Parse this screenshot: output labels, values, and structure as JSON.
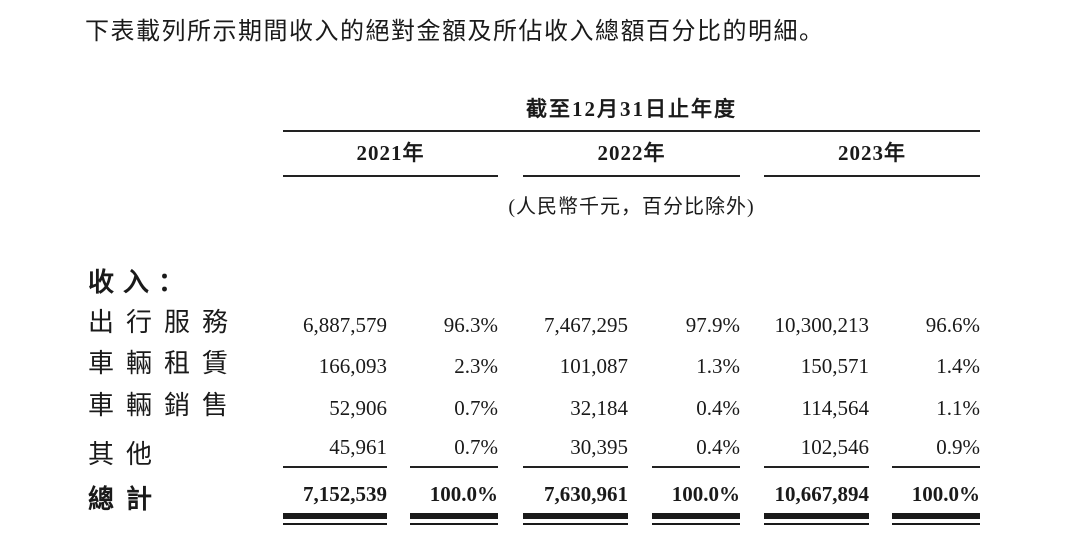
{
  "intro_text": "下表載列所示期間收入的絕對金額及所佔收入總額百分比的明細。",
  "table": {
    "period_header": "截至12月31日止年度",
    "unit_note": "(人民幣千元，百分比除外)",
    "year_columns": [
      {
        "label": "2021年"
      },
      {
        "label": "2022年"
      },
      {
        "label": "2023年"
      }
    ],
    "section_label": "收入：",
    "rows": [
      {
        "label": "出行服務",
        "values": [
          "6,887,579",
          "96.3%",
          "7,467,295",
          "97.9%",
          "10,300,213",
          "96.6%"
        ]
      },
      {
        "label": "車輛租賃",
        "values": [
          "166,093",
          "2.3%",
          "101,087",
          "1.3%",
          "150,571",
          "1.4%"
        ]
      },
      {
        "label": "車輛銷售",
        "values": [
          "52,906",
          "0.7%",
          "32,184",
          "0.4%",
          "114,564",
          "1.1%"
        ]
      },
      {
        "label": "其他",
        "values": [
          "45,961",
          "0.7%",
          "30,395",
          "0.4%",
          "102,546",
          "0.9%"
        ]
      }
    ],
    "total_row": {
      "label": "總計",
      "values": [
        "7,152,539",
        "100.0%",
        "7,630,961",
        "100.0%",
        "10,667,894",
        "100.0%"
      ]
    },
    "colors": {
      "text": "#1a1a1a",
      "rule": "#222222",
      "background": "#ffffff"
    }
  }
}
